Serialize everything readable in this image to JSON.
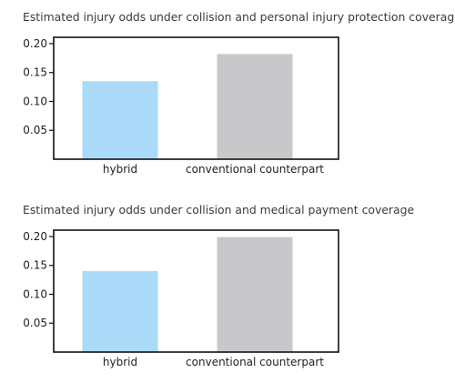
{
  "chart_data": [
    {
      "type": "bar",
      "title": "Estimated injury odds under collision and personal injury protection coverage",
      "categories": [
        "hybrid",
        "conventional counterpart"
      ],
      "values": [
        0.135,
        0.182
      ],
      "colors": [
        "#aadaf7",
        "#c8c8ca"
      ],
      "yticks": [
        0.05,
        0.1,
        0.15,
        0.2
      ],
      "ytick_labels": [
        "0.05",
        "0.10",
        "0.15",
        "0.20"
      ],
      "ylim": [
        0,
        0.211
      ],
      "xlabel": "",
      "ylabel": "",
      "grid": false
    },
    {
      "type": "bar",
      "title": "Estimated injury odds under collision and medical payment coverage",
      "categories": [
        "hybrid",
        "conventional counterpart"
      ],
      "values": [
        0.14,
        0.199
      ],
      "colors": [
        "#aadaf7",
        "#c8c8ca"
      ],
      "yticks": [
        0.05,
        0.1,
        0.15,
        0.2
      ],
      "ytick_labels": [
        "0.05",
        "0.10",
        "0.15",
        "0.20"
      ],
      "ylim": [
        0,
        0.211
      ],
      "xlabel": "",
      "ylabel": "",
      "grid": false
    }
  ]
}
